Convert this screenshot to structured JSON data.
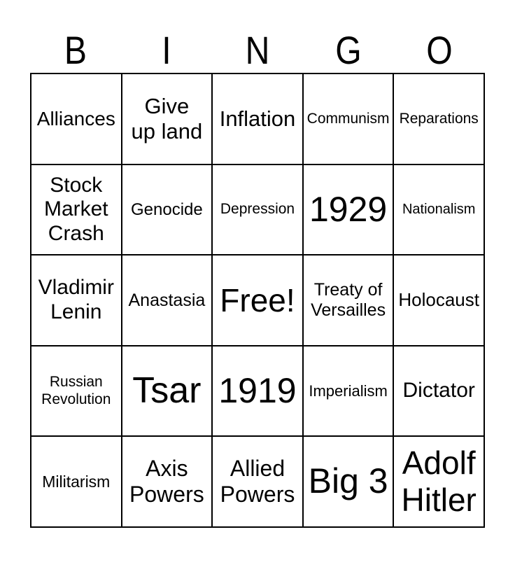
{
  "page": {
    "background_color": "#ffffff",
    "text_color": "#000000",
    "border_color": "#000000"
  },
  "title": {
    "letters": [
      "B",
      "I",
      "N",
      "G",
      "O"
    ]
  },
  "grid": {
    "rows": [
      {
        "cells": [
          {
            "label": "Alliances",
            "font_px": 28
          },
          {
            "label": "Give\nup land",
            "font_px": 31
          },
          {
            "label": "Inflation",
            "font_px": 31
          },
          {
            "label": "Communism",
            "font_px": 21
          },
          {
            "label": "Reparations",
            "font_px": 21
          }
        ]
      },
      {
        "cells": [
          {
            "label": "Stock\nMarket\nCrash",
            "font_px": 30
          },
          {
            "label": "Genocide",
            "font_px": 24
          },
          {
            "label": "Depression",
            "font_px": 21
          },
          {
            "label": "1929",
            "font_px": 50
          },
          {
            "label": "Nationalism",
            "font_px": 20
          }
        ]
      },
      {
        "cells": [
          {
            "label": "Vladimir\nLenin",
            "font_px": 30
          },
          {
            "label": "Anastasia",
            "font_px": 25
          },
          {
            "label": "Free!",
            "font_px": 46,
            "free_space": true
          },
          {
            "label": "Treaty of\nVersailles",
            "font_px": 25
          },
          {
            "label": "Holocaust",
            "font_px": 26
          }
        ]
      },
      {
        "cells": [
          {
            "label": "Russian\nRevolution",
            "font_px": 21
          },
          {
            "label": "Tsar",
            "font_px": 52
          },
          {
            "label": "1919",
            "font_px": 50
          },
          {
            "label": "Imperialism",
            "font_px": 22
          },
          {
            "label": "Dictator",
            "font_px": 30
          }
        ]
      },
      {
        "cells": [
          {
            "label": "Militarism",
            "font_px": 23
          },
          {
            "label": "Axis\nPowers",
            "font_px": 32
          },
          {
            "label": "Allied\nPowers",
            "font_px": 32
          },
          {
            "label": "Big 3",
            "font_px": 50
          },
          {
            "label": "Adolf\nHitler",
            "font_px": 46
          }
        ]
      }
    ]
  }
}
